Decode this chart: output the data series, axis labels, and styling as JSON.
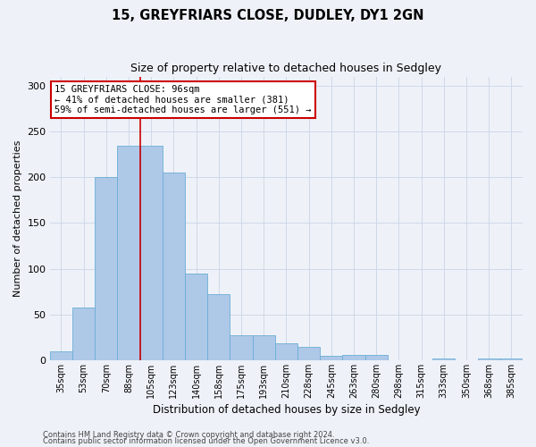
{
  "title": "15, GREYFRIARS CLOSE, DUDLEY, DY1 2GN",
  "subtitle": "Size of property relative to detached houses in Sedgley",
  "xlabel": "Distribution of detached houses by size in Sedgley",
  "ylabel": "Number of detached properties",
  "categories": [
    "35sqm",
    "53sqm",
    "70sqm",
    "88sqm",
    "105sqm",
    "123sqm",
    "140sqm",
    "158sqm",
    "175sqm",
    "193sqm",
    "210sqm",
    "228sqm",
    "245sqm",
    "263sqm",
    "280sqm",
    "298sqm",
    "315sqm",
    "333sqm",
    "350sqm",
    "368sqm",
    "385sqm"
  ],
  "values": [
    10,
    58,
    200,
    234,
    234,
    205,
    95,
    72,
    27,
    27,
    18,
    15,
    5,
    6,
    6,
    0,
    0,
    2,
    0,
    2,
    2
  ],
  "bar_color": "#aec8e8",
  "bar_edge_color": "#6baed6",
  "grid_color": "#d0d8e8",
  "background_color": "#eef2f8",
  "vline_color": "#cc0000",
  "annotation_text": "15 GREYFRIARS CLOSE: 96sqm\n← 41% of detached houses are smaller (381)\n59% of semi-detached houses are larger (551) →",
  "annotation_box_color": "#ffffff",
  "annotation_box_edge": "#cc0000",
  "ylim": [
    0,
    310
  ],
  "yticks": [
    0,
    50,
    100,
    150,
    200,
    250,
    300
  ],
  "footer1": "Contains HM Land Registry data © Crown copyright and database right 2024.",
  "footer2": "Contains public sector information licensed under the Open Government Licence v3.0."
}
